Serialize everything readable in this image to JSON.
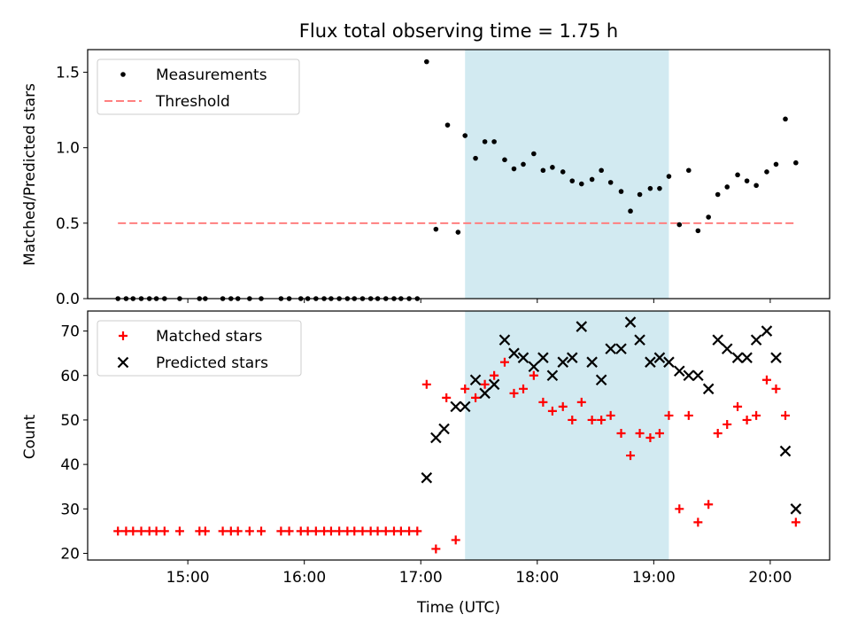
{
  "chart_data": {
    "title": "Flux total observing time = 1.75 h",
    "xlabel": "Time (UTC)",
    "x_ticks": [
      "15:00",
      "16:00",
      "17:00",
      "18:00",
      "19:00",
      "20:00"
    ],
    "x_tick_hours": [
      15,
      16,
      17,
      18,
      19,
      20
    ],
    "xlim_hours": [
      14.14,
      20.51
    ],
    "colors": {
      "shade": "#add8e6",
      "threshold": "#ff7f7f",
      "matched": "#ff0000",
      "predicted": "#000000",
      "measurement": "#000000"
    },
    "shaded_interval_hours": [
      17.38,
      19.13
    ],
    "panels": [
      {
        "type": "scatter",
        "ylabel": "Matched/Predicted stars",
        "ylim": [
          0,
          1.65
        ],
        "y_ticks": [
          "0.0",
          "0.5",
          "1.0",
          "1.5"
        ],
        "y_tick_values": [
          0,
          0.5,
          1.0,
          1.5
        ],
        "legend": {
          "placement": "top-left",
          "items": [
            "Measurements",
            "Threshold"
          ]
        },
        "threshold": {
          "y": 0.5,
          "x_range_hours": [
            14.4,
            20.2
          ]
        },
        "series": [
          {
            "name": "Measurements",
            "marker": "dot",
            "x_hours": [
              14.4,
              14.47,
              14.53,
              14.6,
              14.67,
              14.73,
              14.8,
              14.93,
              15.1,
              15.15,
              15.3,
              15.37,
              15.43,
              15.53,
              15.63,
              15.8,
              15.87,
              15.97,
              16.03,
              16.1,
              16.17,
              16.23,
              16.3,
              16.37,
              16.43,
              16.5,
              16.57,
              16.63,
              16.7,
              16.77,
              16.83,
              16.9,
              16.97,
              17.05,
              17.13,
              17.23,
              17.32,
              17.38,
              17.47,
              17.55,
              17.63,
              17.72,
              17.8,
              17.88,
              17.97,
              18.05,
              18.13,
              18.22,
              18.3,
              18.38,
              18.47,
              18.55,
              18.63,
              18.72,
              18.8,
              18.88,
              18.97,
              19.05,
              19.13,
              19.22,
              19.3,
              19.38,
              19.47,
              19.55,
              19.63,
              19.72,
              19.8,
              19.88,
              19.97,
              20.05,
              20.13,
              20.22
            ],
            "y": [
              0,
              0,
              0,
              0,
              0,
              0,
              0,
              0,
              0,
              0,
              0,
              0,
              0,
              0,
              0,
              0,
              0,
              0,
              0,
              0,
              0,
              0,
              0,
              0,
              0,
              0,
              0,
              0,
              0,
              0,
              0,
              0,
              0,
              1.57,
              0.46,
              1.15,
              0.44,
              1.08,
              0.93,
              1.04,
              1.04,
              0.92,
              0.86,
              0.89,
              0.96,
              0.85,
              0.87,
              0.84,
              0.78,
              0.76,
              0.79,
              0.85,
              0.77,
              0.71,
              0.58,
              0.69,
              0.73,
              0.73,
              0.81,
              0.49,
              0.85,
              0.45,
              0.54,
              0.69,
              0.74,
              0.82,
              0.78,
              0.75,
              0.84,
              0.89,
              1.19,
              0.9
            ]
          }
        ]
      },
      {
        "type": "scatter",
        "ylabel": "Count",
        "ylim": [
          18.5,
          74.5
        ],
        "y_ticks": [
          "20",
          "30",
          "40",
          "50",
          "60",
          "70"
        ],
        "y_tick_values": [
          20,
          30,
          40,
          50,
          60,
          70
        ],
        "legend": {
          "placement": "top-left",
          "items": [
            "Matched stars",
            "Predicted stars"
          ]
        },
        "series": [
          {
            "name": "Matched stars",
            "marker": "plus",
            "x_hours": [
              14.4,
              14.47,
              14.53,
              14.6,
              14.67,
              14.73,
              14.8,
              14.93,
              15.1,
              15.15,
              15.3,
              15.37,
              15.43,
              15.53,
              15.63,
              15.8,
              15.87,
              15.97,
              16.03,
              16.1,
              16.17,
              16.23,
              16.3,
              16.37,
              16.43,
              16.5,
              16.57,
              16.63,
              16.7,
              16.77,
              16.83,
              16.9,
              16.97,
              17.05,
              17.13,
              17.22,
              17.3,
              17.38,
              17.47,
              17.55,
              17.63,
              17.72,
              17.8,
              17.88,
              17.97,
              18.05,
              18.13,
              18.22,
              18.3,
              18.38,
              18.47,
              18.55,
              18.63,
              18.72,
              18.8,
              18.88,
              18.97,
              19.05,
              19.13,
              19.22,
              19.3,
              19.38,
              19.47,
              19.55,
              19.63,
              19.72,
              19.8,
              19.88,
              19.97,
              20.05,
              20.13,
              20.22
            ],
            "y": [
              25,
              25,
              25,
              25,
              25,
              25,
              25,
              25,
              25,
              25,
              25,
              25,
              25,
              25,
              25,
              25,
              25,
              25,
              25,
              25,
              25,
              25,
              25,
              25,
              25,
              25,
              25,
              25,
              25,
              25,
              25,
              25,
              25,
              58,
              21,
              55,
              23,
              57,
              55,
              58,
              60,
              63,
              56,
              57,
              60,
              54,
              52,
              53,
              50,
              54,
              50,
              50,
              51,
              47,
              42,
              47,
              46,
              47,
              51,
              30,
              51,
              27,
              31,
              47,
              49,
              53,
              50,
              51,
              59,
              57,
              51,
              27
            ]
          },
          {
            "name": "Predicted stars",
            "marker": "x",
            "x_hours": [
              17.05,
              17.13,
              17.2,
              17.3,
              17.38,
              17.47,
              17.55,
              17.63,
              17.72,
              17.8,
              17.88,
              17.97,
              18.05,
              18.13,
              18.22,
              18.3,
              18.38,
              18.47,
              18.55,
              18.63,
              18.72,
              18.8,
              18.88,
              18.97,
              19.05,
              19.13,
              19.22,
              19.3,
              19.38,
              19.47,
              19.55,
              19.63,
              19.72,
              19.8,
              19.88,
              19.97,
              20.05,
              20.13,
              20.22
            ],
            "y": [
              37,
              46,
              48,
              53,
              53,
              59,
              56,
              58,
              68,
              65,
              64,
              62,
              64,
              60,
              63,
              64,
              71,
              63,
              59,
              66,
              66,
              72,
              68,
              63,
              64,
              63,
              61,
              60,
              60,
              57,
              68,
              66,
              64,
              64,
              68,
              70,
              64,
              43,
              30
            ]
          }
        ]
      }
    ]
  }
}
